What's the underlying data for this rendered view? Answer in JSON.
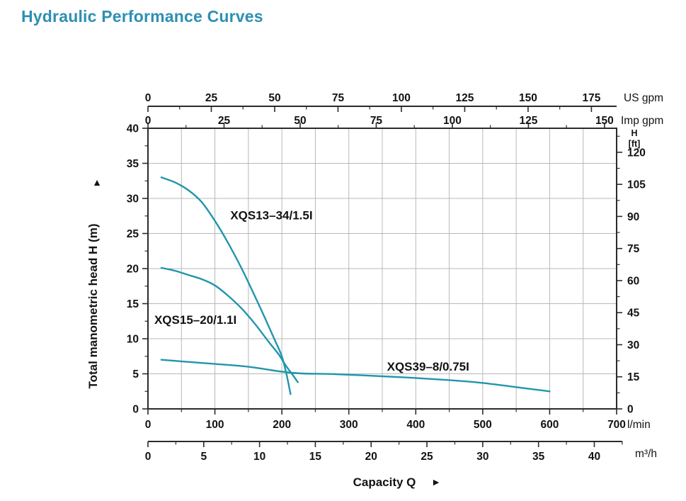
{
  "colors": {
    "title": "#2e8fb3",
    "curve": "#2196ac",
    "grid": "#b8b8b8",
    "axis": "#2b2b2b",
    "text": "#121212"
  },
  "chart_data": {
    "type": "line",
    "title": "Hydraulic Performance Curves",
    "xlabel": "Capacity Q",
    "xlabel_arrow": "►",
    "ylabel": "Total manometric head H (m)",
    "ylabel_arrow": "▲",
    "grid": {
      "x_step_lmin": 50,
      "y_step_m": 5,
      "grid_on": true
    },
    "axes": {
      "us_gpm": {
        "unit": "US gpm",
        "ticks": [
          0,
          25,
          50,
          75,
          100,
          125,
          150,
          175
        ],
        "minor_step": 12.5,
        "lpm_per_unit": 3.785
      },
      "imp_gpm": {
        "unit": "Imp gpm",
        "ticks": [
          0,
          25,
          50,
          75,
          100,
          125,
          150
        ],
        "minor_step": 12.5,
        "lpm_per_unit": 4.546
      },
      "lmin": {
        "unit": "l/min",
        "ticks": [
          0,
          100,
          200,
          300,
          400,
          500,
          600,
          700
        ],
        "minor_step": 50,
        "range": [
          0,
          700
        ]
      },
      "m3h": {
        "unit": "m³/h",
        "ticks": [
          0,
          5,
          10,
          15,
          20,
          25,
          30,
          35,
          40
        ],
        "minor_step": 2.5,
        "lpm_per_unit": 16.6667
      },
      "head_m": {
        "unit": "m",
        "ticks": [
          0,
          5,
          10,
          15,
          20,
          25,
          30,
          35,
          40
        ],
        "minor_step": 2.5,
        "range": [
          0,
          40
        ]
      },
      "head_ft": {
        "unit_label_lines": [
          "H",
          "[ft]"
        ],
        "ticks": [
          0,
          15,
          30,
          45,
          60,
          75,
          90,
          105,
          120
        ],
        "minor_step": 7.5,
        "m_per_unit": 0.3048
      }
    },
    "series": [
      {
        "name": "XQS13–34/1.5I",
        "label_at": [
          123,
          27.0
        ],
        "points": [
          [
            20,
            33
          ],
          [
            40,
            32.3
          ],
          [
            60,
            31.2
          ],
          [
            80,
            29.5
          ],
          [
            100,
            26.8
          ],
          [
            120,
            23.6
          ],
          [
            140,
            20.0
          ],
          [
            160,
            16.0
          ],
          [
            175,
            12.9
          ],
          [
            190,
            9.7
          ],
          [
            200,
            7.5
          ],
          [
            207,
            4.9
          ],
          [
            213,
            2.1
          ]
        ]
      },
      {
        "name": "XQS15–20/1.1I",
        "label_at": [
          9.5,
          12.1
        ],
        "points": [
          [
            20,
            20.1
          ],
          [
            40,
            19.7
          ],
          [
            60,
            19.1
          ],
          [
            80,
            18.5
          ],
          [
            100,
            17.6
          ],
          [
            120,
            16.1
          ],
          [
            140,
            14.3
          ],
          [
            160,
            12.1
          ],
          [
            180,
            9.6
          ],
          [
            195,
            7.8
          ],
          [
            205,
            6.3
          ],
          [
            215,
            5.0
          ],
          [
            224,
            3.8
          ]
        ]
      },
      {
        "name": "XQS39–8/0.75I",
        "label_at": [
          357,
          5.45
        ],
        "points": [
          [
            20,
            7.0
          ],
          [
            60,
            6.7
          ],
          [
            100,
            6.4
          ],
          [
            150,
            6.0
          ],
          [
            200,
            5.3
          ],
          [
            230,
            5.05
          ],
          [
            280,
            4.95
          ],
          [
            350,
            4.65
          ],
          [
            400,
            4.4
          ],
          [
            450,
            4.1
          ],
          [
            500,
            3.7
          ],
          [
            550,
            3.1
          ],
          [
            600,
            2.5
          ]
        ]
      }
    ]
  }
}
